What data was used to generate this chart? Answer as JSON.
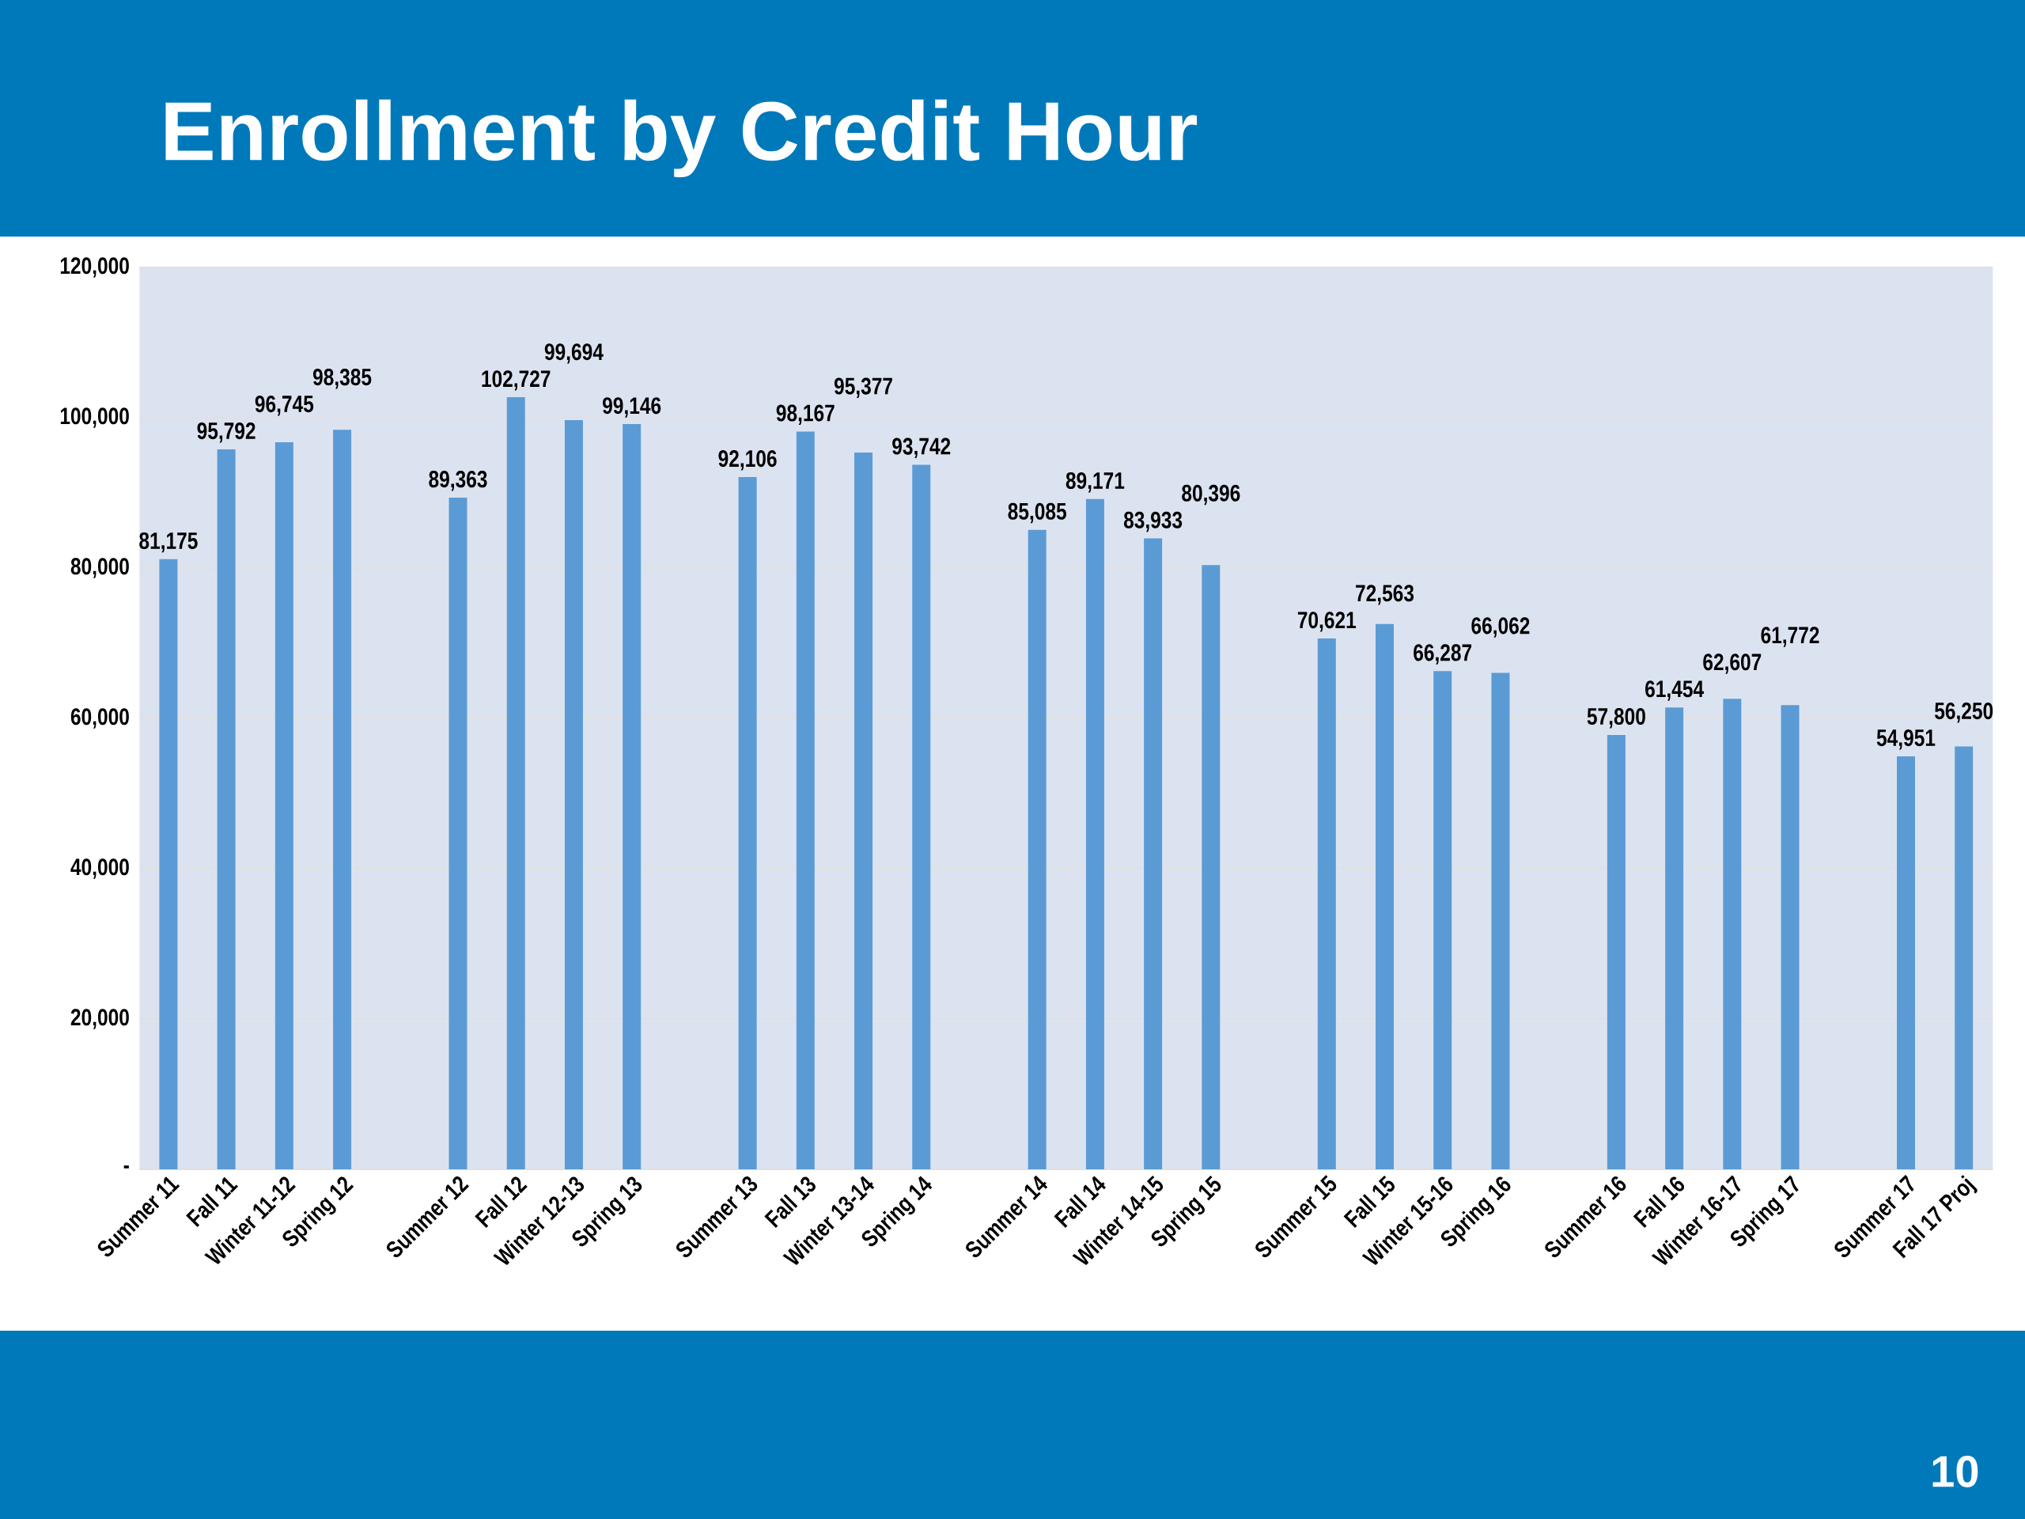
{
  "chart_data": {
    "type": "bar",
    "title": "Enrollment by Credit Hour",
    "categories": [
      "Summer 11",
      "Fall 11",
      "Winter 11-12",
      "Spring 12",
      null,
      "Summer 12",
      "Fall 12",
      "Winter 12-13",
      "Spring 13",
      null,
      "Summer 13",
      "Fall 13",
      "Winter 13-14",
      "Spring 14",
      null,
      "Summer 14",
      "Fall 14",
      "Winter 14-15",
      "Spring 15",
      null,
      "Summer 15",
      "Fall 15",
      "Winter 15-16",
      "Spring 16",
      null,
      "Summer 16",
      "Fall 16",
      "Winter 16-17",
      "Spring 17",
      null,
      "Summer 17",
      "Fall 17 Proj"
    ],
    "values": [
      81175,
      95792,
      96745,
      98385,
      null,
      89363,
      102727,
      99694,
      99146,
      null,
      92106,
      98167,
      95377,
      93742,
      null,
      85085,
      89171,
      83933,
      80396,
      null,
      70621,
      72563,
      66287,
      66062,
      null,
      57800,
      61454,
      62607,
      61772,
      null,
      54951,
      56250
    ],
    "value_labels": [
      "81,175",
      "95,792",
      "96,745",
      "98,385",
      null,
      "89,363",
      "102,727",
      "99,694",
      "99,146",
      null,
      "92,106",
      "98,167",
      "95,377",
      "93,742",
      null,
      "85,085",
      "89,171",
      "83,933",
      "80,396",
      null,
      "70,621",
      "72,563",
      "66,287",
      "66,062",
      null,
      "57,800",
      "61,454",
      "62,607",
      "61,772",
      null,
      "54,951",
      "56,250"
    ],
    "color": "#5b9bd5",
    "ylim": [
      0,
      120000
    ],
    "yticks": [
      {
        "value": 0,
        "label": "-"
      },
      {
        "value": 20000,
        "label": "20,000"
      },
      {
        "value": 40000,
        "label": "40,000"
      },
      {
        "value": 60000,
        "label": "60,000"
      },
      {
        "value": 80000,
        "label": "80,000"
      },
      {
        "value": 100000,
        "label": "100,000"
      },
      {
        "value": 120000,
        "label": "120,000"
      }
    ],
    "grid": "y",
    "annotations": [
      "10"
    ]
  }
}
